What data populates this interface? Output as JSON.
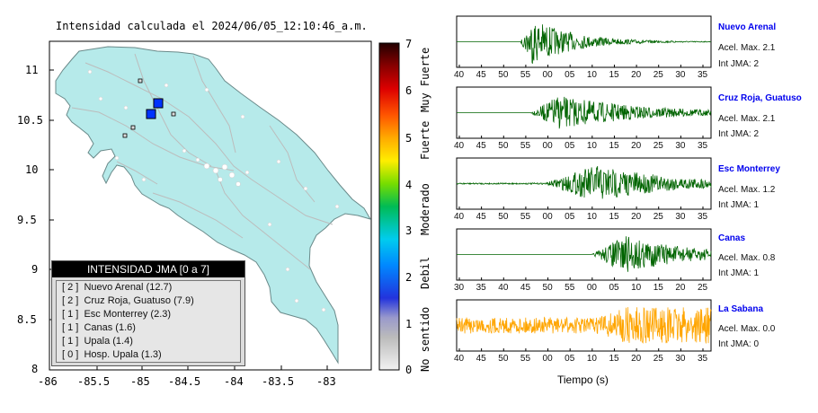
{
  "map": {
    "title": "Intensidad calculada el 2024/06/05_12:10:46_a.m.",
    "lat_ticks": [
      "11",
      "10.5",
      "10",
      "9.5",
      "9",
      "8.5",
      "8"
    ],
    "lon_ticks": [
      "-86",
      "-85.5",
      "-85",
      "-84.5",
      "-84",
      "-83.5",
      "-83"
    ],
    "land_color": "#b6eaea",
    "station_markers": [
      {
        "name": "Nuevo Arenal",
        "color": "#0033ff"
      },
      {
        "name": "Cruz Roja, Guatuso",
        "color": "#0033ff"
      }
    ]
  },
  "legend": {
    "title": "INTENSIDAD JMA [0 a 7]",
    "items": [
      "[ 2 ]  Nuevo Arenal (12.7)",
      "[ 2 ]  Cruz Roja, Guatuso (7.9)",
      "[ 1 ]  Esc Monterrey (2.3)",
      "[ 1 ]  Canas (1.6)",
      "[ 1 ]  Upala (1.4)",
      "[ 0 ]  Hosp. Upala (1.3)"
    ]
  },
  "colorbar": {
    "values": [
      "7",
      "6",
      "5",
      "4",
      "3",
      "2",
      "1",
      "0"
    ],
    "labels": [
      "Muy Fuerte",
      "Fuerte",
      "Moderado",
      "Debil",
      "No sentido"
    ]
  },
  "stations": [
    {
      "name": "Nuevo Arenal",
      "acel": "Acel. Max. 2.1",
      "int": "Int JMA: 2",
      "color": "#006400",
      "ticks": [
        "40",
        "45",
        "50",
        "55",
        "00",
        "05",
        "10",
        "15",
        "20",
        "25",
        "30",
        "35"
      ]
    },
    {
      "name": "Cruz Roja, Guatuso",
      "acel": "Acel. Max. 2.1",
      "int": "Int JMA: 2",
      "color": "#006400",
      "ticks": [
        "40",
        "45",
        "50",
        "55",
        "00",
        "05",
        "10",
        "15",
        "20",
        "25",
        "30",
        "35"
      ]
    },
    {
      "name": "Esc Monterrey",
      "acel": "Acel. Max. 1.2",
      "int": "Int JMA: 1",
      "color": "#006400",
      "ticks": [
        "40",
        "45",
        "50",
        "55",
        "00",
        "05",
        "10",
        "15",
        "20",
        "25",
        "30",
        "35"
      ]
    },
    {
      "name": "Canas",
      "acel": "Acel. Max. 0.8",
      "int": "Int JMA: 1",
      "color": "#006400",
      "ticks": [
        "30",
        "35",
        "40",
        "45",
        "50",
        "55",
        "00",
        "05",
        "10",
        "15",
        "20",
        "25"
      ]
    },
    {
      "name": "La Sabana",
      "acel": "Acel. Max. 0.0",
      "int": "Int JMA: 0",
      "color": "#ffa500",
      "ticks": [
        "40",
        "45",
        "50",
        "55",
        "00",
        "05",
        "10",
        "15",
        "20",
        "25",
        "30",
        "35"
      ]
    }
  ],
  "time_label": "Tiempo (s)"
}
